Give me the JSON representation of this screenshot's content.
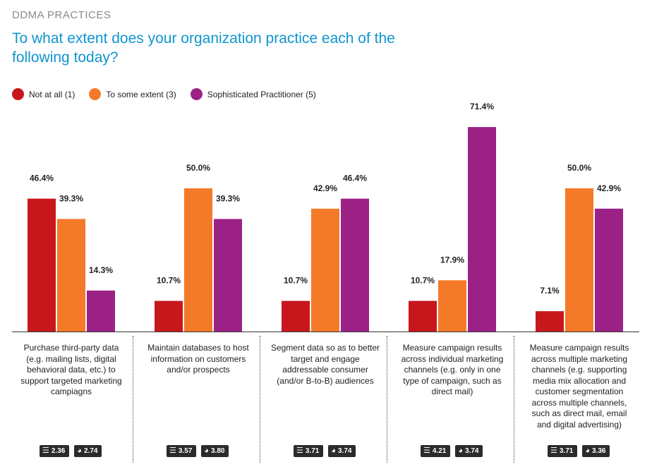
{
  "header": {
    "section": "DDMA PRACTICES",
    "question": "To what extent does your organization practice each of the following today?"
  },
  "legend": [
    {
      "label": "Not at all (1)",
      "color": "#c8161d"
    },
    {
      "label": "To some extent (3)",
      "color": "#f47a29"
    },
    {
      "label": "Sophisticated Practitioner (5)",
      "color": "#9c2186"
    }
  ],
  "chart_data": {
    "type": "bar",
    "title": "To what extent does your organization practice each of the following today?",
    "categories": [
      "Purchase third-party data (e.g. mailing lists, digital behavioral data, etc.) to support targeted marketing campiagns",
      "Maintain databases to host information on customers and/or prospects",
      "Segment data so as to better target and engage addressable consumer (and/or B-to-B) audiences",
      "Measure campaign results across individual marketing channels (e.g. only in one type of campaign, such as direct mail)",
      "Measure campaign results across multiple marketing channels (e.g. supporting media mix allocation and customer segmentation across multiple channels, such as direct mail, email and digital advertising)"
    ],
    "series": [
      {
        "name": "Not at all (1)",
        "color": "#c8161d",
        "values": [
          46.4,
          10.7,
          10.7,
          10.7,
          7.1
        ],
        "labels": [
          "46.4%",
          "10.7%",
          "10.7%",
          "10.7%",
          "7.1%"
        ]
      },
      {
        "name": "To some extent (3)",
        "color": "#f47a29",
        "values": [
          39.3,
          50.0,
          42.9,
          17.9,
          50.0
        ],
        "labels": [
          "39.3%",
          "50.0%",
          "42.9%",
          "17.9%",
          "50.0%"
        ]
      },
      {
        "name": "Sophisticated Practitioner (5)",
        "color": "#9c2186",
        "values": [
          14.3,
          39.3,
          46.4,
          71.4,
          42.9
        ],
        "labels": [
          "14.3%",
          "39.3%",
          "46.4%",
          "71.4%",
          "42.9%"
        ]
      }
    ],
    "ylim": [
      0,
      100
    ],
    "grid": false,
    "legend_position": "top-left"
  },
  "stats": [
    {
      "list": "2.36",
      "globe": "2.74"
    },
    {
      "list": "3.57",
      "globe": "3.80"
    },
    {
      "list": "3.71",
      "globe": "3.74"
    },
    {
      "list": "4.21",
      "globe": "3.74"
    },
    {
      "list": "3.71",
      "globe": "3.36"
    }
  ]
}
